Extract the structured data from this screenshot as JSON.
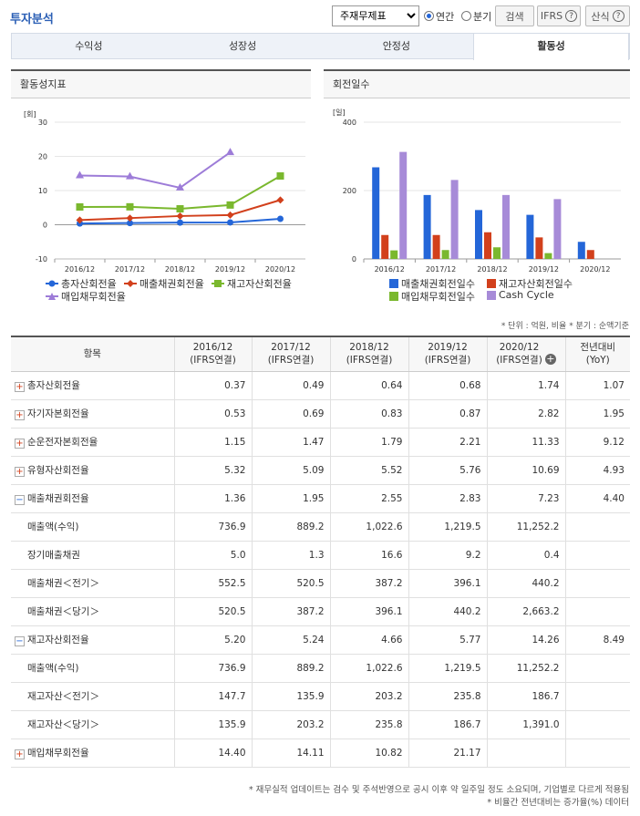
{
  "header": {
    "title": "투자분석",
    "select_value": "주재무제표",
    "radio_annual": "연간",
    "radio_quarter": "분기",
    "search_label": "검색",
    "ifrs_label": "IFRS",
    "formula_label": "산식"
  },
  "tabs": [
    {
      "label": "수익성",
      "active": false
    },
    {
      "label": "성장성",
      "active": false
    },
    {
      "label": "안정성",
      "active": false
    },
    {
      "label": "활동성",
      "active": true
    }
  ],
  "left_panel": {
    "title": "활동성지표",
    "unit": "[회]"
  },
  "right_panel": {
    "title": "회전일수",
    "unit": "[일]"
  },
  "chart_data": [
    {
      "type": "line",
      "categories": [
        "2016/12",
        "2017/12",
        "2018/12",
        "2019/12",
        "2020/12"
      ],
      "ylim": [
        -10,
        30
      ],
      "yticks": [
        30,
        20,
        10,
        0,
        -10
      ],
      "series": [
        {
          "name": "총자산회전율",
          "color": "#2466d8",
          "values": [
            0.37,
            0.49,
            0.64,
            0.68,
            1.74
          ]
        },
        {
          "name": "매출채권회전율",
          "color": "#d2401c",
          "values": [
            1.36,
            1.95,
            2.55,
            2.83,
            7.23
          ]
        },
        {
          "name": "재고자산회전율",
          "color": "#7ab82e",
          "values": [
            5.2,
            5.24,
            4.66,
            5.77,
            14.26
          ]
        },
        {
          "name": "매입채무회전율",
          "color": "#9d7cd8",
          "values": [
            14.4,
            14.11,
            10.82,
            21.17,
            null
          ]
        }
      ]
    },
    {
      "type": "bar",
      "categories": [
        "2016/12",
        "2017/12",
        "2018/12",
        "2019/12",
        "2020/12"
      ],
      "ylim": [
        0,
        400
      ],
      "yticks": [
        400,
        200,
        0
      ],
      "series": [
        {
          "name": "매출채권회전일수",
          "color": "#2466d8",
          "values": [
            268,
            187,
            143,
            129,
            50
          ]
        },
        {
          "name": "재고자산회전일수",
          "color": "#d2401c",
          "values": [
            70,
            70,
            78,
            63,
            26
          ]
        },
        {
          "name": "매입채무회전일수",
          "color": "#7ab82e",
          "values": [
            25,
            26,
            34,
            17,
            0
          ]
        },
        {
          "name": "Cash Cycle",
          "color": "#a78bd8",
          "values": [
            313,
            231,
            187,
            175,
            0
          ]
        }
      ]
    }
  ],
  "unit_note": "* 단위 : 억원, 비율   * 분기 : 순액기준",
  "table": {
    "headers": [
      "항목",
      "2016/12\n(IFRS연결)",
      "2017/12\n(IFRS연결)",
      "2018/12\n(IFRS연결)",
      "2019/12\n(IFRS연결)",
      "2020/12\n(IFRS연결)",
      "전년대비\n(YoY)"
    ],
    "rows": [
      {
        "label": "총자산회전율",
        "toggle": "plus",
        "values": [
          "0.37",
          "0.49",
          "0.64",
          "0.68",
          "1.74",
          "1.07"
        ]
      },
      {
        "label": "자기자본회전율",
        "toggle": "plus",
        "values": [
          "0.53",
          "0.69",
          "0.83",
          "0.87",
          "2.82",
          "1.95"
        ]
      },
      {
        "label": "순운전자본회전율",
        "toggle": "plus",
        "values": [
          "1.15",
          "1.47",
          "1.79",
          "2.21",
          "11.33",
          "9.12"
        ]
      },
      {
        "label": "유형자산회전율",
        "toggle": "plus",
        "values": [
          "5.32",
          "5.09",
          "5.52",
          "5.76",
          "10.69",
          "4.93"
        ]
      },
      {
        "label": "매출채권회전율",
        "toggle": "minus",
        "values": [
          "1.36",
          "1.95",
          "2.55",
          "2.83",
          "7.23",
          "4.40"
        ]
      },
      {
        "label": "매출액(수익)",
        "toggle": "",
        "values": [
          "736.9",
          "889.2",
          "1,022.6",
          "1,219.5",
          "11,252.2",
          ""
        ]
      },
      {
        "label": "장기매출채권",
        "toggle": "",
        "values": [
          "5.0",
          "1.3",
          "16.6",
          "9.2",
          "0.4",
          ""
        ]
      },
      {
        "label": "매출채권＜전기＞",
        "toggle": "",
        "values": [
          "552.5",
          "520.5",
          "387.2",
          "396.1",
          "440.2",
          ""
        ]
      },
      {
        "label": "매출채권＜당기＞",
        "toggle": "",
        "values": [
          "520.5",
          "387.2",
          "396.1",
          "440.2",
          "2,663.2",
          ""
        ]
      },
      {
        "label": "재고자산회전율",
        "toggle": "minus",
        "values": [
          "5.20",
          "5.24",
          "4.66",
          "5.77",
          "14.26",
          "8.49"
        ]
      },
      {
        "label": "매출액(수익)",
        "toggle": "",
        "values": [
          "736.9",
          "889.2",
          "1,022.6",
          "1,219.5",
          "11,252.2",
          ""
        ]
      },
      {
        "label": "재고자산＜전기＞",
        "toggle": "",
        "values": [
          "147.7",
          "135.9",
          "203.2",
          "235.8",
          "186.7",
          ""
        ]
      },
      {
        "label": "재고자산＜당기＞",
        "toggle": "",
        "values": [
          "135.9",
          "203.2",
          "235.8",
          "186.7",
          "1,391.0",
          ""
        ]
      },
      {
        "label": "매입채무회전율",
        "toggle": "plus",
        "values": [
          "14.40",
          "14.11",
          "10.82",
          "21.17",
          "",
          ""
        ]
      }
    ]
  },
  "footnotes": [
    "* 재무실적 업데이트는 검수 및 주석반영으로 공시 이후 약 일주일 정도 소요되며, 기업별로 다르게 적용됨",
    "* 비율간 전년대비는 증가율(%) 데이터"
  ]
}
